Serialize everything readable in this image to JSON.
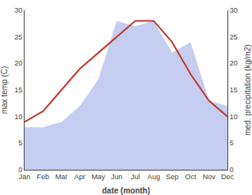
{
  "chart_data": {
    "type": "line",
    "categories": [
      "Jan",
      "Feb",
      "Mar",
      "Apr",
      "May",
      "Jun",
      "Jul",
      "Aug",
      "Sep",
      "Oct",
      "Nov",
      "Dec"
    ],
    "series": [
      {
        "type": "area",
        "color": "#c5cdf0",
        "axis": "y2",
        "values": [
          8,
          8,
          9,
          12,
          17,
          28,
          27,
          28,
          22,
          24,
          13,
          12
        ]
      },
      {
        "type": "line",
        "color": "#c0392b",
        "values": [
          9,
          11,
          15,
          19,
          22,
          25,
          28,
          28,
          24,
          18,
          13,
          10
        ]
      }
    ],
    "xlabel": "date (month)",
    "ylabel": "max temp (C)",
    "y2label": "med. precipitation (kg/m2)",
    "ylim": [
      0,
      30
    ],
    "yticks": [
      0,
      5,
      10,
      15,
      20,
      25,
      30
    ],
    "y2lim": [
      0,
      30
    ],
    "y2ticks": [
      0,
      5,
      10,
      15,
      20,
      25,
      30
    ],
    "grid": false
  }
}
